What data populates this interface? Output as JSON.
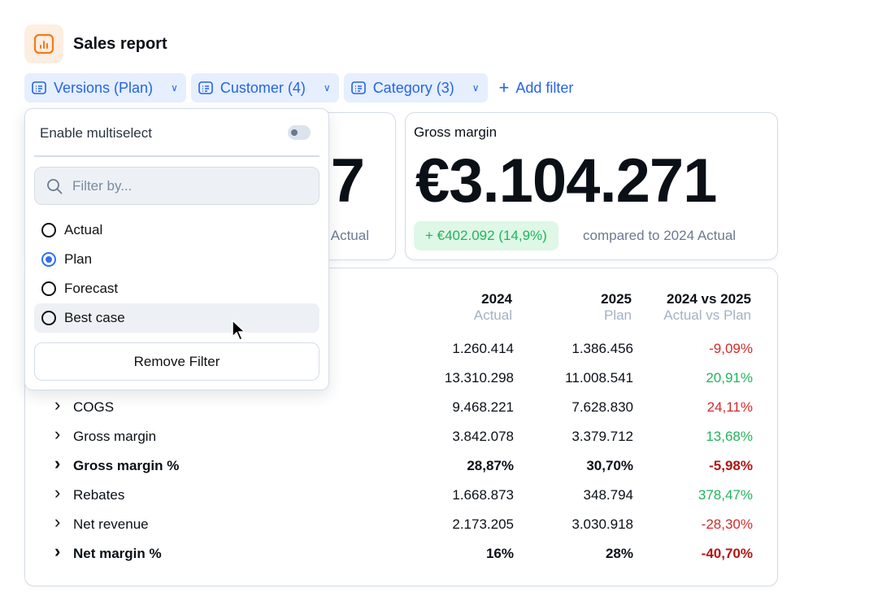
{
  "header": {
    "title": "Sales report",
    "logo_icon": "bar-chart-icon",
    "accent": "#f07b1e"
  },
  "filters": [
    {
      "label": "Versions (Plan)"
    },
    {
      "label": "Customer (4)"
    },
    {
      "label": "Category (3)"
    }
  ],
  "add_filter": "Add filter",
  "kpis": [
    {
      "label": "",
      "value": "7",
      "comparison": "Actual"
    },
    {
      "label": "Gross margin",
      "value": "€3.104.271",
      "delta": "+ €402.092 (14,9%)",
      "comparison": "compared to 2024 Actual"
    }
  ],
  "table": {
    "columns": [
      {
        "year": "2024",
        "version": "Actual"
      },
      {
        "year": "2025",
        "version": "Plan"
      },
      {
        "year": "2024 vs 2025",
        "version": "Actual vs Plan"
      }
    ],
    "rows": [
      {
        "label": "",
        "v2024": "1.260.414",
        "v2025": "1.386.456",
        "diff": "-9,09%",
        "tone": "neg",
        "bold": false
      },
      {
        "label": "",
        "v2024": "13.310.298",
        "v2025": "11.008.541",
        "diff": "20,91%",
        "tone": "pos",
        "bold": false
      },
      {
        "label": "COGS",
        "v2024": "9.468.221",
        "v2025": "7.628.830",
        "diff": "24,11%",
        "tone": "neg",
        "bold": false
      },
      {
        "label": "Gross margin",
        "v2024": "3.842.078",
        "v2025": "3.379.712",
        "diff": "13,68%",
        "tone": "pos",
        "bold": false
      },
      {
        "label": "Gross margin %",
        "v2024": "28,87%",
        "v2025": "30,70%",
        "diff": "-5,98%",
        "tone": "negb",
        "bold": true
      },
      {
        "label": "Rebates",
        "v2024": "1.668.873",
        "v2025": "348.794",
        "diff": "378,47%",
        "tone": "pos",
        "bold": false
      },
      {
        "label": "Net revenue",
        "v2024": "2.173.205",
        "v2025": "3.030.918",
        "diff": "-28,30%",
        "tone": "neg",
        "bold": false
      },
      {
        "label": "Net margin %",
        "v2024": "16%",
        "v2025": "28%",
        "diff": "-40,70%",
        "tone": "negb",
        "bold": true
      }
    ]
  },
  "dropdown": {
    "multiselect_label": "Enable multiselect",
    "multiselect_on": false,
    "search_placeholder": "Filter by...",
    "options": [
      {
        "label": "Actual",
        "selected": false
      },
      {
        "label": "Plan",
        "selected": true
      },
      {
        "label": "Forecast",
        "selected": false
      },
      {
        "label": "Best case",
        "selected": false,
        "hovered": true
      }
    ],
    "remove_label": "Remove Filter"
  }
}
